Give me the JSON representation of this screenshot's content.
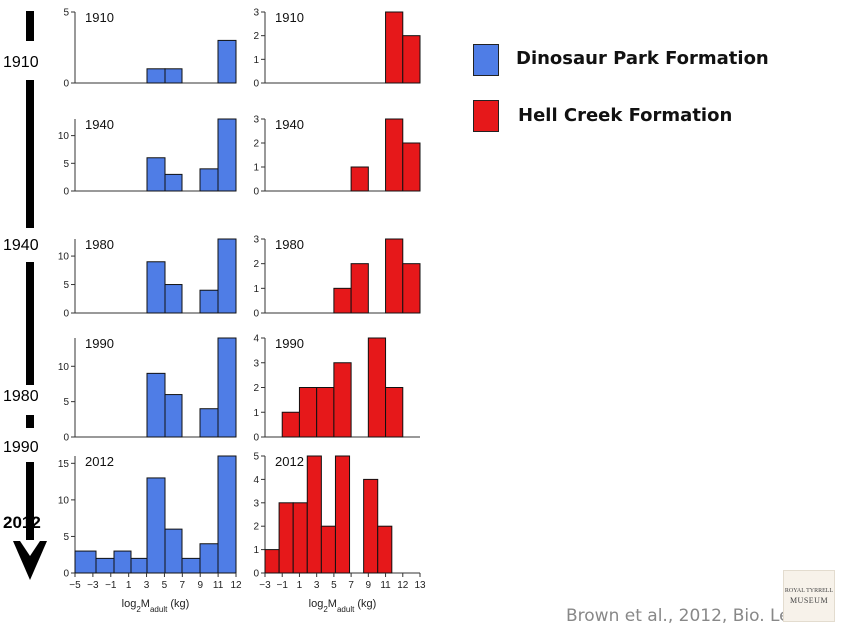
{
  "colors": {
    "dinosaur_park": "#4f7de6",
    "hell_creek": "#e6181a",
    "timeline": "#000000"
  },
  "legend": [
    {
      "label": "Dinosaur Park Formation",
      "color": "#4f7de6"
    },
    {
      "label": "Hell Creek Formation",
      "color": "#e6181a"
    }
  ],
  "timeline": {
    "labels": [
      "1910",
      "1940",
      "1980",
      "1990",
      "2012"
    ]
  },
  "citation": "Brown et al., 2012, Bio. Lett.",
  "logo": {
    "line1": "ROYAL TYRRELL",
    "line2": "MUSEUM"
  },
  "axes": {
    "dp_x_ticks": [
      "−5",
      "−3",
      "−1",
      "1",
      "3",
      "5",
      "7",
      "9",
      "11",
      "12"
    ],
    "hc_x_ticks": [
      "−3",
      "−1",
      "1",
      "3",
      "5",
      "7",
      "9",
      "11",
      "12",
      "13"
    ],
    "xlabel_main": "log",
    "xlabel_sub2": "2",
    "xlabel_M": "M",
    "xlabel_sub": "adult",
    "xlabel_unit": " (kg)"
  },
  "chart_data": [
    {
      "type": "bar",
      "formation": "Dinosaur Park Formation",
      "panel_label": "1910",
      "ylim": [
        0,
        5
      ],
      "yticks": [
        0,
        5
      ],
      "bins": 10,
      "values": [
        0,
        0,
        0,
        0,
        1,
        1,
        0,
        0,
        3,
        0
      ]
    },
    {
      "type": "bar",
      "formation": "Hell Creek Formation",
      "panel_label": "1910",
      "ylim": [
        0,
        3
      ],
      "yticks": [
        0,
        1,
        2,
        3
      ],
      "bins": 9,
      "values": [
        0,
        0,
        0,
        0,
        0,
        0,
        0,
        3,
        2
      ]
    },
    {
      "type": "bar",
      "formation": "Dinosaur Park Formation",
      "panel_label": "1940",
      "ylim": [
        0,
        13
      ],
      "yticks": [
        0,
        5,
        10
      ],
      "bins": 10,
      "values": [
        0,
        0,
        0,
        0,
        6,
        3,
        0,
        4,
        13,
        0
      ]
    },
    {
      "type": "bar",
      "formation": "Hell Creek Formation",
      "panel_label": "1940",
      "ylim": [
        0,
        3
      ],
      "yticks": [
        0,
        1,
        2,
        3
      ],
      "bins": 9,
      "values": [
        0,
        0,
        0,
        0,
        0,
        1,
        0,
        3,
        2
      ]
    },
    {
      "type": "bar",
      "formation": "Dinosaur Park Formation",
      "panel_label": "1980",
      "ylim": [
        0,
        13
      ],
      "yticks": [
        0,
        5,
        10
      ],
      "bins": 10,
      "values": [
        0,
        0,
        0,
        0,
        9,
        5,
        0,
        4,
        13,
        0
      ]
    },
    {
      "type": "bar",
      "formation": "Hell Creek Formation",
      "panel_label": "1980",
      "ylim": [
        0,
        3
      ],
      "yticks": [
        0,
        1,
        2,
        3
      ],
      "bins": 9,
      "values": [
        0,
        0,
        0,
        0,
        1,
        2,
        0,
        3,
        2
      ]
    },
    {
      "type": "bar",
      "formation": "Dinosaur Park Formation",
      "panel_label": "1990",
      "ylim": [
        0,
        14
      ],
      "yticks": [
        0,
        5,
        10
      ],
      "bins": 10,
      "values": [
        0,
        0,
        0,
        0,
        9,
        6,
        0,
        4,
        14,
        0
      ]
    },
    {
      "type": "bar",
      "formation": "Hell Creek Formation",
      "panel_label": "1990",
      "ylim": [
        0,
        4
      ],
      "yticks": [
        0,
        1,
        2,
        3,
        4
      ],
      "bins": 9,
      "values": [
        0,
        1,
        2,
        2,
        3,
        0,
        4,
        2,
        0
      ]
    },
    {
      "type": "bar",
      "formation": "Dinosaur Park Formation",
      "panel_label": "2012",
      "ylim": [
        0,
        16
      ],
      "yticks": [
        0,
        5,
        10,
        15
      ],
      "bins": 10,
      "values": [
        3,
        2,
        3,
        2,
        13,
        6,
        2,
        4,
        16,
        0
      ]
    },
    {
      "type": "bar",
      "formation": "Hell Creek Formation",
      "panel_label": "2012",
      "ylim": [
        0,
        5
      ],
      "yticks": [
        0,
        1,
        2,
        3,
        4,
        5
      ],
      "bins": 11,
      "values": [
        1,
        3,
        3,
        5,
        2,
        5,
        0,
        4,
        2,
        0,
        0
      ]
    }
  ]
}
